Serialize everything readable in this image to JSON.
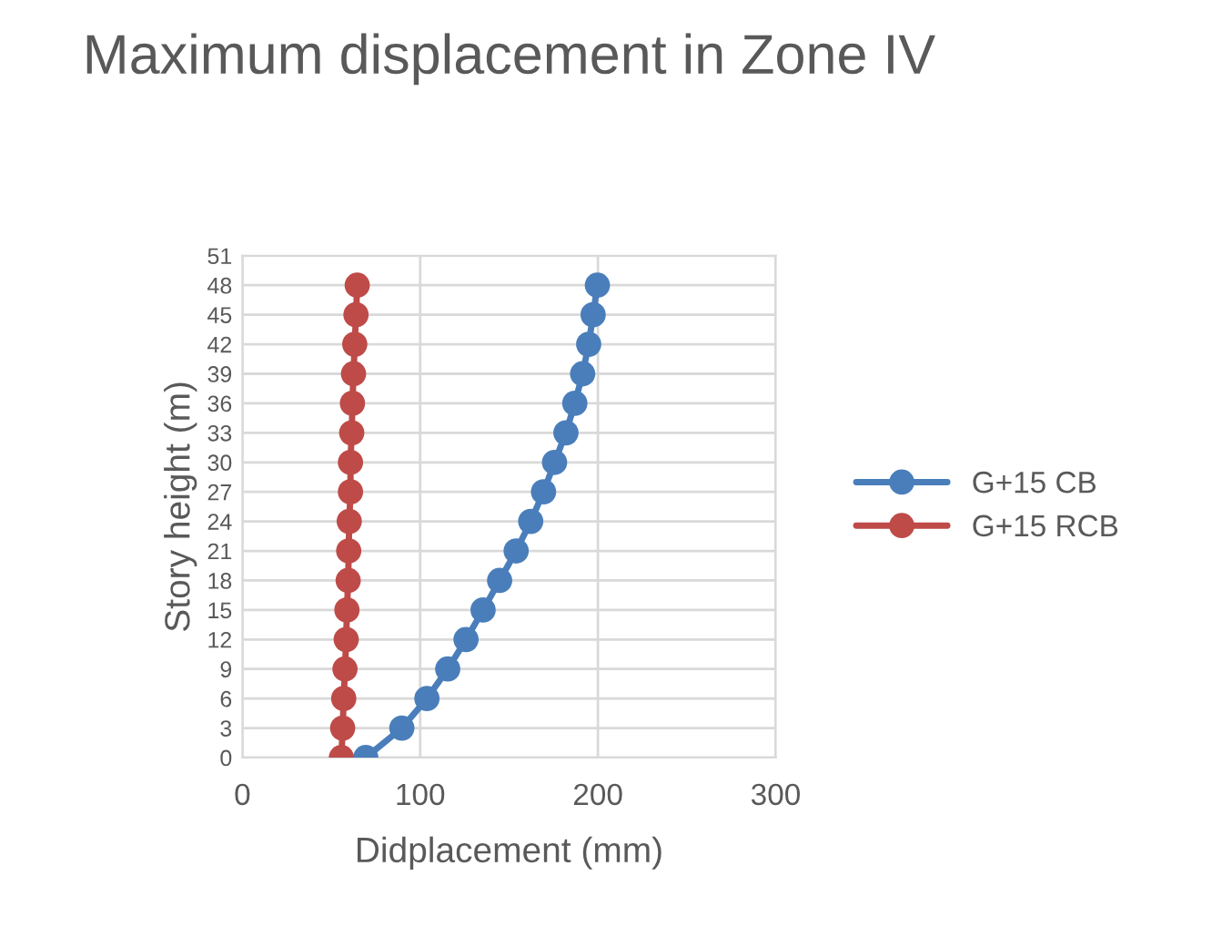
{
  "chart_data": {
    "type": "line",
    "title": "Maximum displacement in Zone IV",
    "xlabel": "Didplacement (mm)",
    "ylabel": "Story height (m)",
    "series": [
      {
        "name": "G+15 CB",
        "color": "#4a7ebb",
        "x": [
          69.4,
          89.7,
          103.8,
          115.5,
          125.8,
          135.4,
          144.7,
          154,
          162.2,
          169.4,
          175.6,
          182,
          187,
          191.4,
          194.8,
          197.3,
          199.7
        ],
        "values": [
          0,
          3,
          6,
          9,
          12,
          15,
          18,
          21,
          24,
          27,
          30,
          33,
          36,
          39,
          42,
          45,
          48
        ]
      },
      {
        "name": "G+15 RCB",
        "color": "#be4b48",
        "x": [
          55.7,
          56.4,
          57,
          57.7,
          58.4,
          58.8,
          59.5,
          59.8,
          60.1,
          60.8,
          60.8,
          61.5,
          61.9,
          62.5,
          63.2,
          63.9,
          64.6
        ],
        "values": [
          0,
          3,
          6,
          9,
          12,
          15,
          18,
          21,
          24,
          27,
          30,
          33,
          36,
          39,
          42,
          45,
          48
        ]
      }
    ],
    "xlim": [
      0,
      300
    ],
    "xticks": [
      0,
      100,
      200,
      300
    ],
    "ylim": [
      0,
      51
    ],
    "yticks": [
      0,
      3,
      6,
      9,
      12,
      15,
      18,
      21,
      24,
      27,
      30,
      33,
      36,
      39,
      42,
      45,
      48,
      51
    ],
    "grid": true,
    "legend": "right",
    "marker": "circle",
    "line_style": "solid"
  }
}
